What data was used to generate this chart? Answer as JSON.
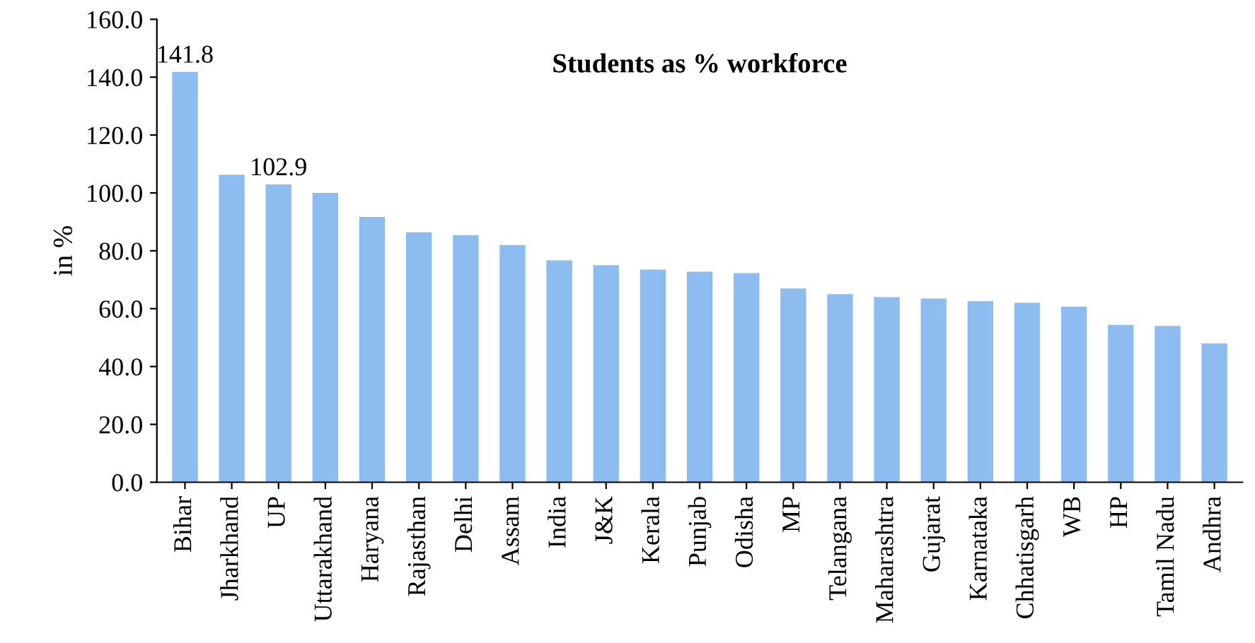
{
  "chart_data": {
    "type": "bar",
    "title": "Students as % workforce",
    "ylabel": "in %",
    "categories": [
      "Bihar",
      "Jharkhand",
      "UP",
      "Uttarakhand",
      "Haryana",
      "Rajasthan",
      "Delhi",
      "Assam",
      "India",
      "J&K",
      "Kerala",
      "Punjab",
      "Odisha",
      "MP",
      "Telangana",
      "Maharashtra",
      "Gujarat",
      "Karnataka",
      "Chhatisgarh",
      "WB",
      "HP",
      "Tamil Nadu",
      "Andhra"
    ],
    "values": [
      141.8,
      106.3,
      102.9,
      100,
      91.7,
      86.4,
      85.4,
      82,
      76.7,
      75,
      73.5,
      72.8,
      72.3,
      67,
      65,
      64,
      63.5,
      62.6,
      62,
      60.7,
      54.4,
      54,
      48
    ],
    "value_labels": [
      "141.8",
      null,
      "102.9",
      null,
      null,
      null,
      null,
      null,
      null,
      null,
      null,
      null,
      null,
      null,
      null,
      null,
      null,
      null,
      null,
      null,
      null,
      null,
      null
    ],
    "color": "#8dbcf0",
    "ylim": [
      0,
      160
    ],
    "yticks": [
      {
        "value": 0,
        "label": "0.0"
      },
      {
        "value": 20,
        "label": "20.0"
      },
      {
        "value": 40,
        "label": "40.0"
      },
      {
        "value": 60,
        "label": "60.0"
      },
      {
        "value": 80,
        "label": "80.0"
      },
      {
        "value": 100,
        "label": "100.0"
      },
      {
        "value": 120,
        "label": "120.0"
      },
      {
        "value": 140,
        "label": "140.0"
      },
      {
        "value": 160,
        "label": "160.0"
      }
    ],
    "grid": false,
    "legend": false
  }
}
